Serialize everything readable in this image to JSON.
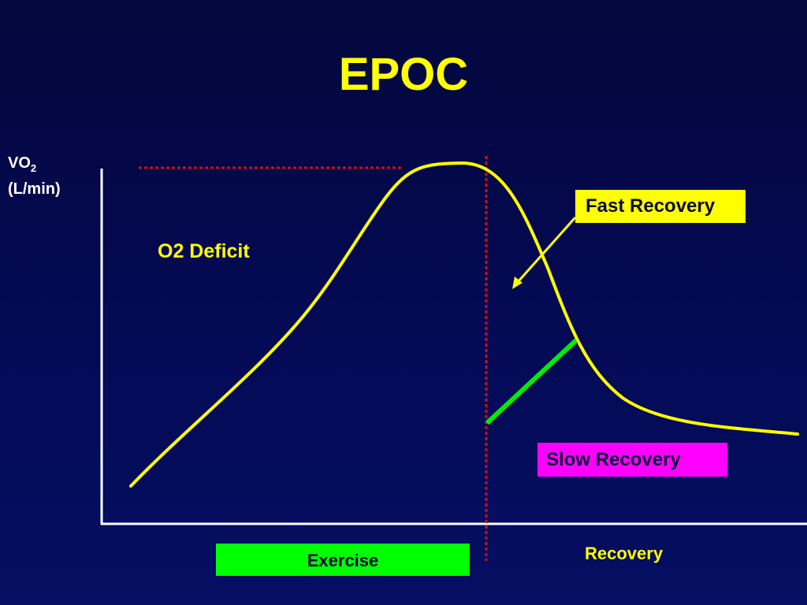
{
  "slide": {
    "title": "EPOC",
    "y_axis": {
      "main": "VO",
      "sub": "2",
      "unit": "(L/min)"
    },
    "labels": {
      "o2_deficit": "O2 Deficit",
      "fast_recovery": "Fast Recovery",
      "slow_recovery": "Slow Recovery",
      "exercise": "Exercise",
      "recovery": "Recovery"
    },
    "colors": {
      "curve": "#ffff00",
      "axes": "#ffffff",
      "dotted_lines": "#cc1111",
      "slow_marker": "#00ee00",
      "fast_arrow": "#ffff00",
      "fast_box": "#ffff00",
      "slow_box": "#ff00ff",
      "exercise_box": "#00ff00"
    },
    "icons": {
      "arrow": "arrow-down-left-icon"
    }
  }
}
